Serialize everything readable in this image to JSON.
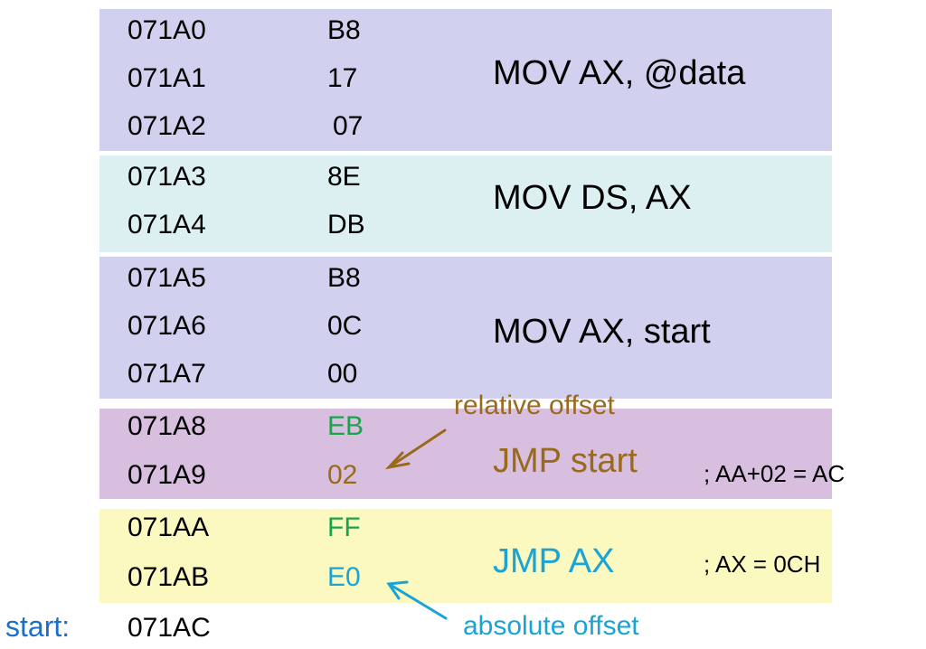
{
  "colors": {
    "block_mov": "#d1d0ee",
    "block_movds": "#ddf0f1",
    "block_jmp": "#d8bfe0",
    "block_jmpax": "#fbf9bf",
    "text": "#000000",
    "green": "#1aa34a",
    "brown": "#9a6a1c",
    "blue": "#1aa3d6"
  },
  "rows": [
    {
      "addr": "071A0",
      "byte": "B8"
    },
    {
      "addr": "071A1",
      "byte": "17"
    },
    {
      "addr": "071A2",
      "byte": "07"
    },
    {
      "addr": "071A3",
      "byte": "8E"
    },
    {
      "addr": "071A4",
      "byte": "DB"
    },
    {
      "addr": "071A5",
      "byte": "B8"
    },
    {
      "addr": "071A6",
      "byte": "0C"
    },
    {
      "addr": "071A7",
      "byte": "00"
    },
    {
      "addr": "071A8",
      "byte": "EB"
    },
    {
      "addr": "071A9",
      "byte": "02"
    },
    {
      "addr": "071AA",
      "byte": "FF"
    },
    {
      "addr": "071AB",
      "byte": "E0"
    },
    {
      "addr": "071AC",
      "byte": ""
    }
  ],
  "instructions": [
    {
      "text": "MOV AX, @data"
    },
    {
      "text": "MOV DS, AX"
    },
    {
      "text": "MOV AX, start"
    },
    {
      "text": "JMP start",
      "comment": ";  AA+02 = AC"
    },
    {
      "text": "JMP AX",
      "comment": ";  AX = 0CH"
    }
  ],
  "start_label": "start:",
  "annotations": {
    "relative": "relative offset",
    "absolute": "absolute offset"
  }
}
